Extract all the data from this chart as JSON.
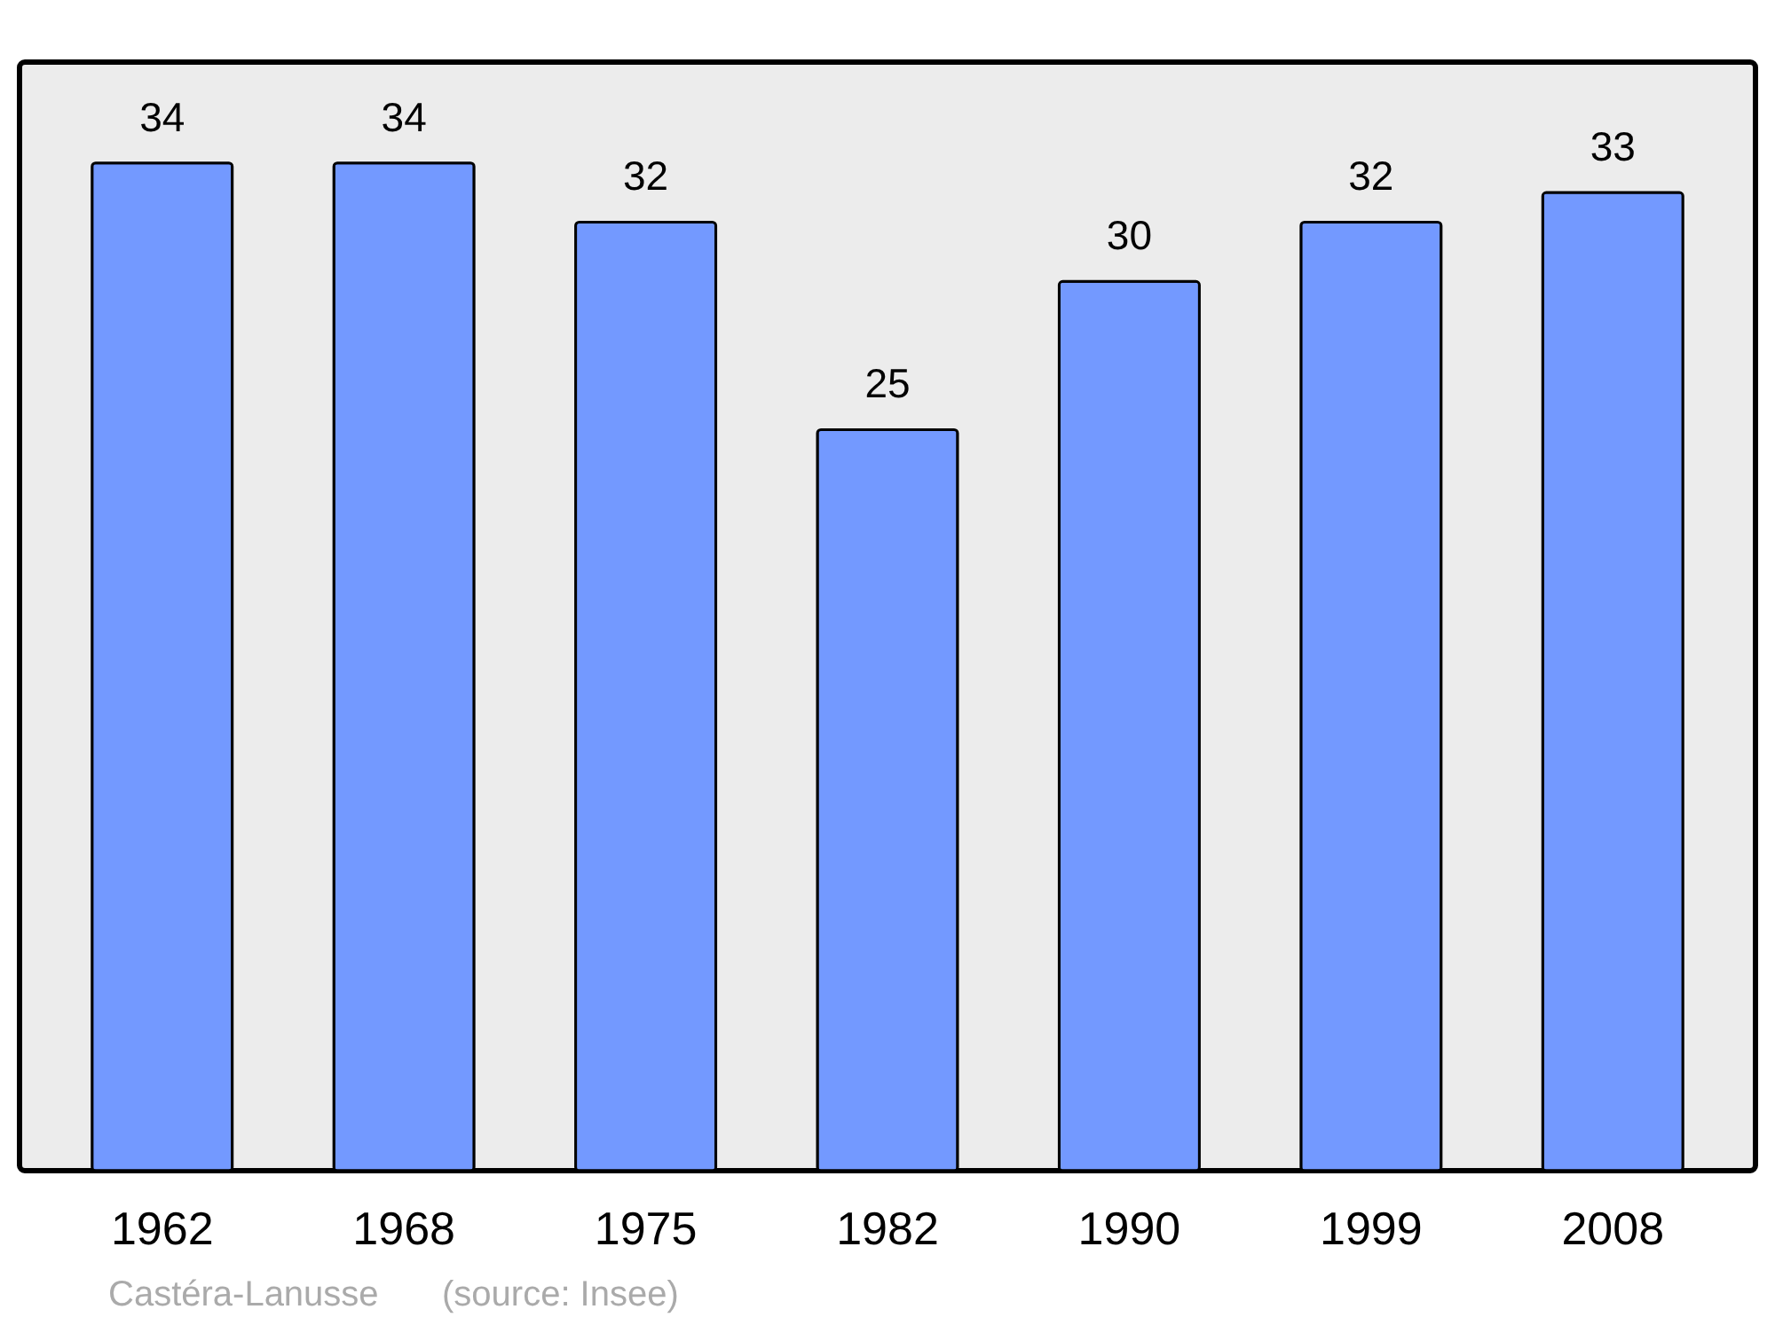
{
  "chart_data": {
    "type": "bar",
    "categories": [
      "1962",
      "1968",
      "1975",
      "1982",
      "1990",
      "1999",
      "2008"
    ],
    "values": [
      34,
      34,
      32,
      25,
      30,
      32,
      33
    ],
    "color": "#7399ff",
    "ylim": [
      0,
      37.4
    ],
    "data_labels": true,
    "annotations": [
      "Castéra-Lanusse",
      "(source: Insee)"
    ]
  }
}
